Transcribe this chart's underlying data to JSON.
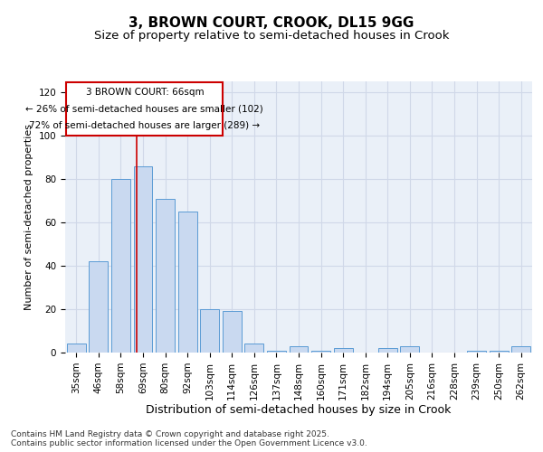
{
  "title": "3, BROWN COURT, CROOK, DL15 9GG",
  "subtitle": "Size of property relative to semi-detached houses in Crook",
  "xlabel": "Distribution of semi-detached houses by size in Crook",
  "ylabel": "Number of semi-detached properties",
  "categories": [
    "35sqm",
    "46sqm",
    "58sqm",
    "69sqm",
    "80sqm",
    "92sqm",
    "103sqm",
    "114sqm",
    "126sqm",
    "137sqm",
    "148sqm",
    "160sqm",
    "171sqm",
    "182sqm",
    "194sqm",
    "205sqm",
    "216sqm",
    "228sqm",
    "239sqm",
    "250sqm",
    "262sqm"
  ],
  "values": [
    4,
    42,
    80,
    86,
    71,
    65,
    20,
    19,
    4,
    1,
    3,
    1,
    2,
    0,
    2,
    3,
    0,
    0,
    1,
    1,
    3
  ],
  "bar_color": "#c9d9f0",
  "bar_edge_color": "#5b9bd5",
  "grid_color": "#d0d8e8",
  "background_color": "#eaf0f8",
  "annotation_line1": "3 BROWN COURT: 66sqm",
  "annotation_line2": "← 26% of semi-detached houses are smaller (102)",
  "annotation_line3": "72% of semi-detached houses are larger (289) →",
  "annotation_box_color": "#cc0000",
  "vline_color": "#cc0000",
  "ylim": [
    0,
    125
  ],
  "yticks": [
    0,
    20,
    40,
    60,
    80,
    100,
    120
  ],
  "footnote": "Contains HM Land Registry data © Crown copyright and database right 2025.\nContains public sector information licensed under the Open Government Licence v3.0.",
  "title_fontsize": 11,
  "subtitle_fontsize": 9.5,
  "xlabel_fontsize": 9,
  "ylabel_fontsize": 8,
  "tick_fontsize": 7.5,
  "annotation_fontsize": 7.5,
  "footnote_fontsize": 6.5
}
